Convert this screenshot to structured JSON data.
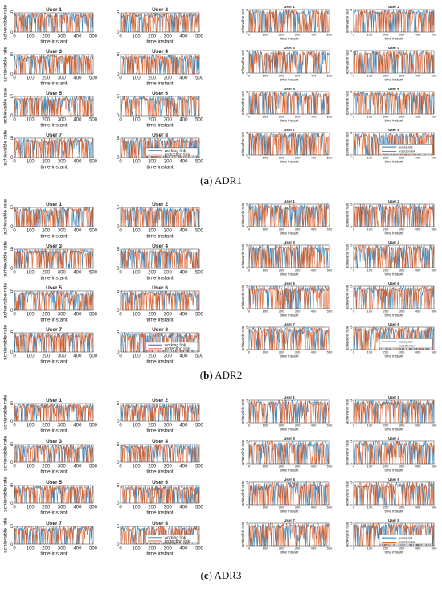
{
  "chart_data": {
    "type": "line",
    "common": {
      "xlabel": "time instant",
      "ylabel": "achievable rate",
      "xlim": [
        0,
        500
      ],
      "xticks": [
        0,
        100,
        200,
        300,
        400,
        500
      ],
      "ylim": [
        0,
        5
      ],
      "yticks": [
        0,
        5
      ],
      "grid": false,
      "series": [
        {
          "name": "working link",
          "color": "#1f77b4"
        },
        {
          "name": "protection link",
          "color": "#d95319"
        }
      ],
      "legend_panel": "User 8",
      "legend_placement": "lower-right"
    },
    "subfigures": [
      {
        "label": "(a)",
        "label_letter": "a",
        "name": "ADR1",
        "panels_left": [
          "User 1",
          "User 2",
          "User 3",
          "User 4",
          "User 5",
          "User 6",
          "User 7",
          "User 8"
        ],
        "panels_right": [
          "User 1",
          "User 2",
          "User 3",
          "User 4",
          "User 5",
          "User 6",
          "User 7",
          "User 8"
        ]
      },
      {
        "label": "(b)",
        "label_letter": "b",
        "name": "ADR2",
        "panels_left": [
          "User 1",
          "User 2",
          "User 3",
          "User 4",
          "User 5",
          "User 6",
          "User 7",
          "User 8"
        ],
        "panels_right": [
          "User 1",
          "User 2",
          "User 3",
          "User 4",
          "User 5",
          "User 6",
          "User 7",
          "User 8"
        ]
      },
      {
        "label": "(c)",
        "label_letter": "c",
        "name": "ADR3",
        "panels_left": [
          "User 1",
          "User 2",
          "User 3",
          "User 4",
          "User 5",
          "User 6",
          "User 7",
          "User 8"
        ],
        "panels_right": [
          "User 1",
          "User 2",
          "User 3",
          "User 4",
          "User 5",
          "User 6",
          "User 7",
          "User 8"
        ]
      }
    ]
  }
}
